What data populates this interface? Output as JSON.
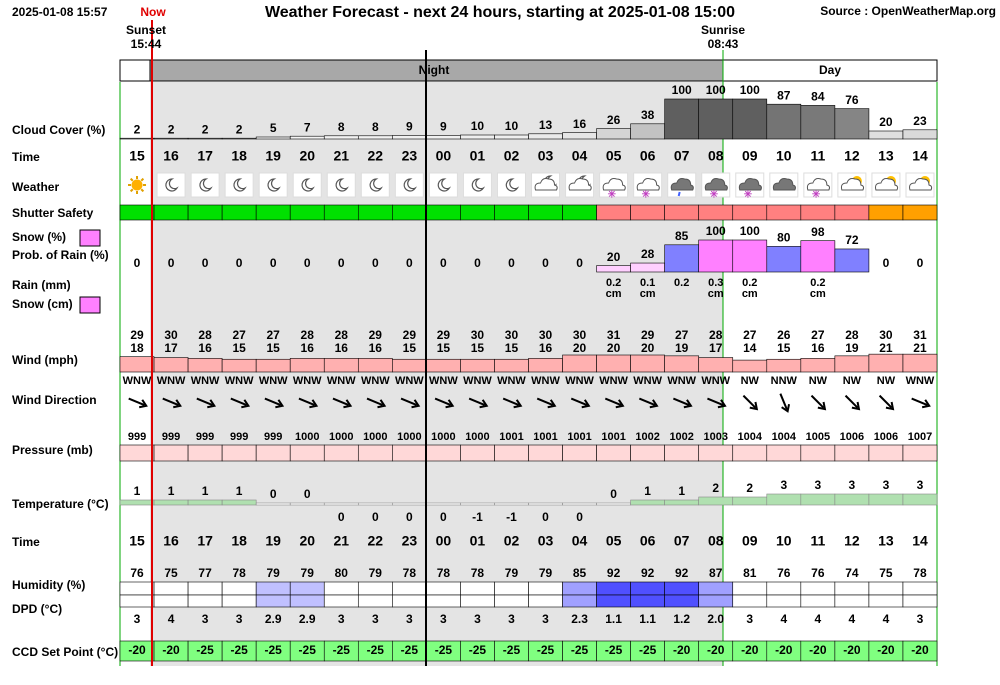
{
  "header": {
    "timestamp": "2025-01-08 15:57",
    "now": "Now",
    "title": "Weather Forecast - next 24 hours, starting at 2025-01-08 15:00",
    "source": "Source : OpenWeatherMap.org",
    "sunset_label": "Sunset",
    "sunset_time": "15:44",
    "sunrise_label": "Sunrise",
    "sunrise_time": "08:43",
    "night": "Night",
    "day": "Day"
  },
  "row_labels": {
    "cloud": "Cloud Cover (%)",
    "time": "Time",
    "weather": "Weather",
    "shutter": "Shutter Safety",
    "snow_pct": "Snow (%)",
    "rain_prob": "Prob. of Rain (%)",
    "rain_mm": "Rain (mm)",
    "snow_cm": "Snow (cm)",
    "wind": "Wind (mph)",
    "wind_dir": "Wind Direction",
    "pressure": "Pressure (mb)",
    "temperature": "Temperature (°C)",
    "time2": "Time",
    "humidity": "Humidity (%)",
    "dpd": "DPD (°C)",
    "ccd": "CCD Set Point (°C)"
  },
  "hours": [
    "15",
    "16",
    "17",
    "18",
    "19",
    "20",
    "21",
    "22",
    "23",
    "00",
    "01",
    "02",
    "03",
    "04",
    "05",
    "06",
    "07",
    "08",
    "09",
    "10",
    "11",
    "12",
    "13",
    "14"
  ],
  "cloud_cover": [
    2,
    2,
    2,
    2,
    5,
    7,
    8,
    8,
    9,
    9,
    10,
    10,
    13,
    16,
    26,
    38,
    100,
    100,
    100,
    87,
    84,
    76,
    20,
    23
  ],
  "shutter_colors": [
    "#00e000",
    "#00e000",
    "#00e000",
    "#00e000",
    "#00e000",
    "#00e000",
    "#00e000",
    "#00e000",
    "#00e000",
    "#00e000",
    "#00e000",
    "#00e000",
    "#00e000",
    "#00e000",
    "#ff8080",
    "#ff8080",
    "#ff8080",
    "#ff8080",
    "#ff8080",
    "#ff8080",
    "#ff8080",
    "#ff8080",
    "#ffa000",
    "#ffa000"
  ],
  "precip": {
    "probability": [
      0,
      0,
      0,
      0,
      0,
      0,
      0,
      0,
      0,
      0,
      0,
      0,
      0,
      0,
      20,
      28,
      85,
      100,
      100,
      80,
      98,
      72,
      0,
      0
    ],
    "colors": [
      "#ffffff",
      "#ffffff",
      "#ffffff",
      "#ffffff",
      "#ffffff",
      "#ffffff",
      "#ffffff",
      "#ffffff",
      "#ffffff",
      "#ffffff",
      "#ffffff",
      "#ffffff",
      "#ffffff",
      "#ffffff",
      "#ffd0ff",
      "#ffd0ff",
      "#8080ff",
      "#ff80ff",
      "#ff80ff",
      "#8080ff",
      "#ff80ff",
      "#8080ff",
      "#ffffff",
      "#ffffff"
    ],
    "amounts": [
      null,
      null,
      null,
      null,
      null,
      null,
      null,
      null,
      null,
      null,
      null,
      null,
      null,
      null,
      0.2,
      0.1,
      0.2,
      0.3,
      0.2,
      null,
      0.2,
      null,
      null,
      null
    ],
    "units": [
      null,
      null,
      null,
      null,
      null,
      null,
      null,
      null,
      null,
      null,
      null,
      null,
      null,
      null,
      "cm",
      "cm",
      null,
      "cm",
      "cm",
      null,
      "cm",
      null,
      null,
      null
    ]
  },
  "wind": {
    "gust": [
      29,
      30,
      28,
      27,
      27,
      28,
      28,
      29,
      29,
      29,
      30,
      30,
      30,
      30,
      31,
      29,
      27,
      28,
      27,
      26,
      27,
      28,
      30,
      31
    ],
    "speed": [
      18,
      17,
      16,
      15,
      15,
      16,
      16,
      16,
      15,
      15,
      15,
      15,
      16,
      20,
      20,
      20,
      19,
      17,
      14,
      15,
      16,
      19,
      21,
      21
    ],
    "direction": [
      "WNW",
      "WNW",
      "WNW",
      "WNW",
      "WNW",
      "WNW",
      "WNW",
      "WNW",
      "WNW",
      "WNW",
      "WNW",
      "WNW",
      "WNW",
      "WNW",
      "WNW",
      "WNW",
      "WNW",
      "WNW",
      "NW",
      "NNW",
      "NW",
      "NW",
      "NW",
      "WNW"
    ]
  },
  "pressure": [
    999,
    999,
    999,
    999,
    999,
    1000,
    1000,
    1000,
    1000,
    1000,
    1000,
    1001,
    1001,
    1001,
    1001,
    1002,
    1002,
    1003,
    1004,
    1004,
    1005,
    1006,
    1006,
    1007
  ],
  "temperature": [
    1,
    1,
    1,
    1,
    0,
    0,
    0,
    0,
    0,
    0,
    -1,
    -1,
    0,
    0,
    0,
    1,
    1,
    2,
    2,
    3,
    3,
    3,
    3,
    3
  ],
  "humidity": [
    76,
    75,
    77,
    78,
    79,
    79,
    80,
    79,
    78,
    78,
    78,
    79,
    79,
    85,
    92,
    92,
    92,
    87,
    81,
    76,
    76,
    74,
    75,
    78
  ],
  "dpd": {
    "values": [
      3,
      4,
      3,
      3,
      2.9,
      2.9,
      3,
      3,
      3,
      3,
      3,
      3,
      3,
      2.3,
      1.1,
      1.1,
      1.2,
      2.0,
      3,
      4,
      4,
      4,
      4,
      3
    ],
    "value_labels": [
      "3",
      "4",
      "3",
      "3",
      "2.9",
      "2.9",
      "3",
      "3",
      "3",
      "3",
      "3",
      "3",
      "3",
      "2.3",
      "1.1",
      "1.1",
      "1.2",
      "2.0",
      "3",
      "4",
      "4",
      "4",
      "4",
      "3"
    ]
  },
  "ccd": [
    -20,
    -20,
    -25,
    -25,
    -25,
    -25,
    -25,
    -25,
    -25,
    -25,
    -25,
    -25,
    -25,
    -25,
    -25,
    -25,
    -20,
    -20,
    -20,
    -20,
    -20,
    -20,
    -20,
    -20
  ]
}
